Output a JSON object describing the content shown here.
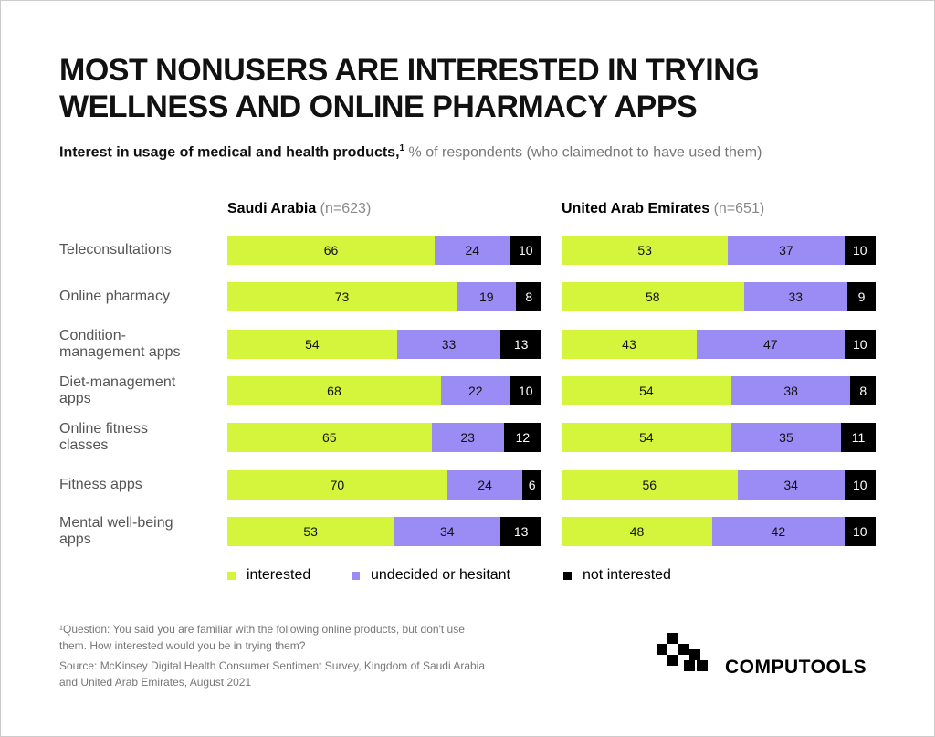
{
  "title": "MOST NONUSERS ARE INTERESTED IN TRYING\nWELLNESS AND ONLINE PHARMACY APPS",
  "subtitle": {
    "main": "Interest in usage of medical and health  products,",
    "ref": "1",
    "rest": " % of respondents (who claimednot to have used them)"
  },
  "chart_data": [
    {
      "type": "bar",
      "orientation": "horizontal",
      "stacked": true,
      "title": "Saudi Arabia",
      "subtitle": "(n=623)",
      "xlim": [
        0,
        100
      ],
      "categories": [
        "Teleconsultations",
        "Online pharmacy",
        "Condition-\nmanagement apps",
        "Diet-management\napps",
        "Online fitness\nclasses",
        "Fitness apps",
        "Mental well-being\napps"
      ],
      "series": [
        {
          "name": "interested",
          "color": "#d4f53c",
          "values": [
            66,
            73,
            54,
            68,
            65,
            70,
            53
          ]
        },
        {
          "name": "undecided or hesitant",
          "color": "#9b8cf5",
          "values": [
            24,
            19,
            33,
            22,
            23,
            24,
            34
          ]
        },
        {
          "name": "not interested",
          "color": "#000000",
          "values": [
            10,
            8,
            13,
            10,
            12,
            6,
            13
          ]
        }
      ]
    },
    {
      "type": "bar",
      "orientation": "horizontal",
      "stacked": true,
      "title": "United Arab Emirates",
      "subtitle": "(n=651)",
      "xlim": [
        0,
        100
      ],
      "series": [
        {
          "values": [
            53,
            58,
            43,
            54,
            54,
            56,
            48
          ]
        },
        {
          "values": [
            37,
            33,
            47,
            38,
            35,
            34,
            42
          ]
        },
        {
          "values": [
            10,
            9,
            10,
            8,
            11,
            10,
            10
          ]
        }
      ]
    }
  ],
  "footnote": "¹Question: You said you are familiar with the following online products, but don't use\nthem. How interested would you be in trying them?",
  "source": "Source: McKinsey Digital Health Consumer Sentiment Survey, Kingdom of Saudi Arabia\nand United Arab Emirates, August 2021",
  "brand": "COMPUTOOLS"
}
